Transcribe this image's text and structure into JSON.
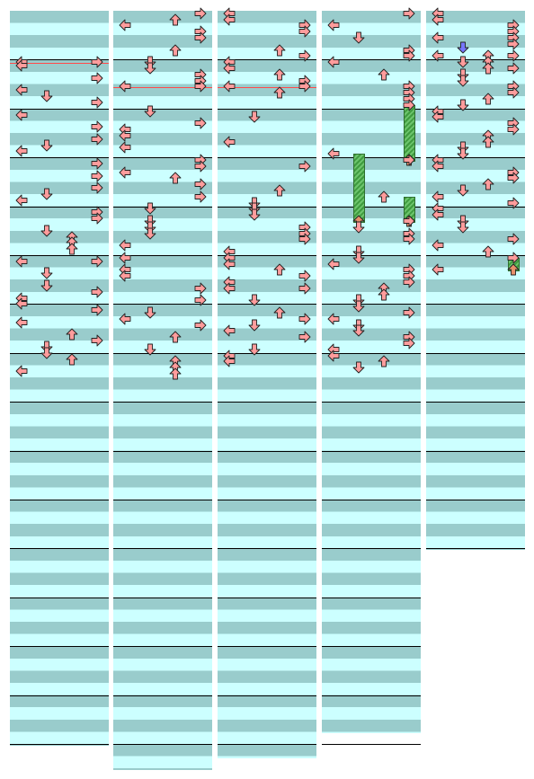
{
  "chart": {
    "lanes": [
      "left",
      "down",
      "up",
      "right"
    ],
    "colors": {
      "note": "#ff9c9c",
      "note_stroke": "#222222",
      "mine_note": "#7777ff",
      "hold_body": "#4c9a4c",
      "row_dark": "#99cccc",
      "row_light": "#ccffff",
      "measure_line": "#000000",
      "stop_line": "#ff4a4a"
    },
    "measures_per_column": [
      15,
      15,
      15,
      15,
      11
    ],
    "columns": [
      {
        "notes": [
          [
            "right",
            4.2
          ],
          [
            "left",
            4.2
          ],
          [
            "left",
            4.5
          ],
          [
            "right",
            5.5
          ],
          [
            "left",
            6.5
          ],
          [
            "down",
            7
          ],
          [
            "right",
            7.5
          ],
          [
            "left",
            8.5
          ],
          [
            "right",
            9.5
          ],
          [
            "right",
            10.5
          ],
          [
            "down",
            11
          ],
          [
            "left",
            11.5
          ],
          [
            "right",
            12.5
          ],
          [
            "right",
            13.5
          ],
          [
            "right",
            14.5
          ],
          [
            "down",
            15
          ],
          [
            "left",
            15.5
          ],
          [
            "right",
            16.5
          ],
          [
            "right",
            17
          ],
          [
            "down",
            18
          ],
          [
            "up",
            18.5
          ],
          [
            "up",
            19
          ],
          [
            "up",
            19.5
          ],
          [
            "left",
            20.5
          ],
          [
            "right",
            20.5
          ],
          [
            "down",
            21.5
          ],
          [
            "down",
            22.5
          ],
          [
            "right",
            23
          ],
          [
            "left",
            23.5
          ],
          [
            "left",
            24
          ],
          [
            "right",
            24.5
          ],
          [
            "left",
            25.5
          ],
          [
            "up",
            26.5
          ],
          [
            "right",
            27
          ],
          [
            "down",
            27.5
          ],
          [
            "down",
            28
          ],
          [
            "up",
            28.5
          ],
          [
            "left",
            29.5
          ]
        ],
        "holds": [],
        "stops": [
          4.2
        ],
        "mines": []
      },
      {
        "notes": [
          [
            "right",
            0.2
          ],
          [
            "up",
            0.7
          ],
          [
            "left",
            1.2
          ],
          [
            "right",
            1.7
          ],
          [
            "right",
            2.2
          ],
          [
            "up",
            3.2
          ],
          [
            "down",
            4.2
          ],
          [
            "down",
            4.7
          ],
          [
            "right",
            5.2
          ],
          [
            "right",
            5.7
          ],
          [
            "left",
            6.2
          ],
          [
            "right",
            6.2
          ],
          [
            "down",
            8.2
          ],
          [
            "right",
            9.2
          ],
          [
            "left",
            9.7
          ],
          [
            "left",
            10.2
          ],
          [
            "left",
            11.2
          ],
          [
            "right",
            12.2
          ],
          [
            "right",
            12.7
          ],
          [
            "left",
            13.2
          ],
          [
            "up",
            13.7
          ],
          [
            "right",
            14.2
          ],
          [
            "right",
            15.2
          ],
          [
            "down",
            16.2
          ],
          [
            "down",
            17.2
          ],
          [
            "down",
            17.7
          ],
          [
            "down",
            18.2
          ],
          [
            "left",
            19.2
          ],
          [
            "left",
            20.2
          ],
          [
            "left",
            21.2
          ],
          [
            "left",
            21.7
          ],
          [
            "right",
            22.7
          ],
          [
            "right",
            23.7
          ],
          [
            "down",
            24.7
          ],
          [
            "left",
            25.2
          ],
          [
            "right",
            25.7
          ],
          [
            "up",
            26.7
          ],
          [
            "down",
            27.7
          ],
          [
            "up",
            28.7
          ],
          [
            "up",
            29.2
          ],
          [
            "up",
            29.7
          ]
        ],
        "holds": [],
        "stops": [
          6.2
        ],
        "mines": []
      },
      {
        "notes": [
          [
            "left",
            0.2
          ],
          [
            "left",
            0.7
          ],
          [
            "right",
            1.2
          ],
          [
            "right",
            1.7
          ],
          [
            "up",
            3.2
          ],
          [
            "right",
            3.7
          ],
          [
            "left",
            4.2
          ],
          [
            "left",
            4.7
          ],
          [
            "up",
            5.2
          ],
          [
            "right",
            5.7
          ],
          [
            "left",
            6.2
          ],
          [
            "right",
            6.2
          ],
          [
            "up",
            6.7
          ],
          [
            "down",
            8.7
          ],
          [
            "left",
            10.7
          ],
          [
            "right",
            12.7
          ],
          [
            "up",
            14.7
          ],
          [
            "down",
            15.7
          ],
          [
            "down",
            16.2
          ],
          [
            "down",
            16.7
          ],
          [
            "right",
            17.7
          ],
          [
            "right",
            18.2
          ],
          [
            "right",
            18.7
          ],
          [
            "left",
            19.7
          ],
          [
            "left",
            20.2
          ],
          [
            "left",
            20.7
          ],
          [
            "up",
            21.2
          ],
          [
            "right",
            21.7
          ],
          [
            "left",
            22.2
          ],
          [
            "right",
            22.7
          ],
          [
            "left",
            22.7
          ],
          [
            "down",
            23.7
          ],
          [
            "up",
            24.7
          ],
          [
            "right",
            25.2
          ],
          [
            "down",
            25.7
          ],
          [
            "left",
            26.2
          ],
          [
            "right",
            26.7
          ],
          [
            "down",
            27.7
          ],
          [
            "left",
            28.2
          ],
          [
            "left",
            28.7
          ]
        ],
        "holds": [],
        "stops": [
          6.2
        ],
        "mines": []
      },
      {
        "notes": [
          [
            "right",
            0.2
          ],
          [
            "left",
            1.2
          ],
          [
            "down",
            2.2
          ],
          [
            "right",
            3.2
          ],
          [
            "right",
            3.7
          ],
          [
            "left",
            4.2
          ],
          [
            "up",
            5.2
          ],
          [
            "right",
            6.2
          ],
          [
            "right",
            6.7
          ],
          [
            "right",
            7.2
          ],
          [
            "right",
            7.7
          ],
          [
            "left",
            11.7
          ],
          [
            "right",
            12.2
          ],
          [
            "up",
            15.2
          ],
          [
            "right",
            17.2
          ],
          [
            "down",
            17.7
          ],
          [
            "right",
            18.2
          ],
          [
            "right",
            18.7
          ],
          [
            "down",
            19.7
          ],
          [
            "down",
            20.2
          ],
          [
            "left",
            20.7
          ],
          [
            "right",
            21.2
          ],
          [
            "right",
            21.7
          ],
          [
            "right",
            22.2
          ],
          [
            "up",
            22.7
          ],
          [
            "up",
            23.2
          ],
          [
            "down",
            23.7
          ],
          [
            "down",
            24.2
          ],
          [
            "right",
            24.7
          ],
          [
            "left",
            25.2
          ],
          [
            "down",
            25.7
          ],
          [
            "down",
            26.2
          ],
          [
            "right",
            26.7
          ],
          [
            "right",
            27.2
          ],
          [
            "left",
            27.7
          ],
          [
            "left",
            28.2
          ],
          [
            "up",
            28.7
          ],
          [
            "down",
            29.2
          ]
        ],
        "holds": [
          [
            "right",
            7.7,
            12.2
          ],
          [
            "down",
            11.7,
            17.2
          ],
          [
            "right",
            15.2,
            17.2
          ]
        ],
        "stops": [],
        "mines": []
      },
      {
        "notes": [
          [
            "left",
            0.2
          ],
          [
            "left",
            0.7
          ],
          [
            "right",
            1.2
          ],
          [
            "right",
            1.7
          ],
          [
            "left",
            2.2
          ],
          [
            "right",
            2.2
          ],
          [
            "right",
            2.7
          ],
          [
            "left",
            3.7
          ],
          [
            "up",
            3.7
          ],
          [
            "right",
            3.7
          ],
          [
            "down",
            4.2
          ],
          [
            "up",
            4.2
          ],
          [
            "right",
            4.7
          ],
          [
            "up",
            4.7
          ],
          [
            "down",
            5.2
          ],
          [
            "down",
            5.7
          ],
          [
            "right",
            6.2
          ],
          [
            "right",
            6.7
          ],
          [
            "up",
            7.2
          ],
          [
            "down",
            7.7
          ],
          [
            "left",
            8.2
          ],
          [
            "left",
            8.7
          ],
          [
            "right",
            9.2
          ],
          [
            "right",
            9.7
          ],
          [
            "up",
            10.2
          ],
          [
            "up",
            10.7
          ],
          [
            "down",
            11.2
          ],
          [
            "down",
            11.7
          ],
          [
            "left",
            12.2
          ],
          [
            "left",
            12.7
          ],
          [
            "right",
            13.2
          ],
          [
            "right",
            13.7
          ],
          [
            "up",
            14.2
          ],
          [
            "down",
            14.7
          ],
          [
            "left",
            15.2
          ],
          [
            "right",
            15.7
          ],
          [
            "left",
            16.2
          ],
          [
            "left",
            16.7
          ],
          [
            "down",
            17.2
          ],
          [
            "down",
            17.7
          ],
          [
            "right",
            18.7
          ],
          [
            "left",
            19.2
          ],
          [
            "up",
            19.7
          ],
          [
            "right",
            20.2
          ],
          [
            "left",
            21.2
          ]
        ],
        "holds": [
          [
            "right",
            20.2,
            21.2
          ]
        ],
        "stops": [],
        "mines": [
          [
            "down",
            3.0
          ]
        ]
      }
    ]
  }
}
